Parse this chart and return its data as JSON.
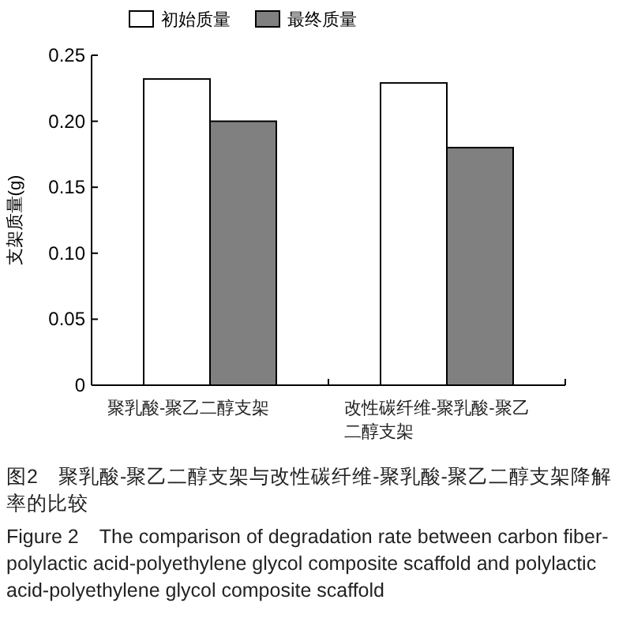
{
  "chart_data": {
    "type": "bar",
    "categories": [
      "聚乳酸-聚乙二醇支架",
      "改性碳纤维-聚乳酸-聚乙二醇支架"
    ],
    "series": [
      {
        "name": "初始质量",
        "color": "#ffffff",
        "values": [
          0.232,
          0.229
        ]
      },
      {
        "name": "最终质量",
        "color": "#808080",
        "values": [
          0.2,
          0.18
        ]
      }
    ],
    "ylabel": "支架质量(g)",
    "ylim": [
      0,
      0.25
    ],
    "yticks": [
      {
        "value": 0,
        "label": "0"
      },
      0.05,
      {
        "value": 0.1,
        "label": "0.10"
      },
      0.15,
      {
        "value": 0.2,
        "label": "0.20"
      },
      0.25
    ],
    "legend": "top",
    "annotations": [
      "图2　聚乳酸-聚乙二醇支架与改性碳纤维-聚乳酸-聚乙二醇支架降解率的比较",
      "Figure 2　The comparison of degradation rate between carbon fiber-polylactic acid-polyethylene glycol composite scaffold and polylactic acid-polyethylene glycol composite scaffold"
    ]
  }
}
